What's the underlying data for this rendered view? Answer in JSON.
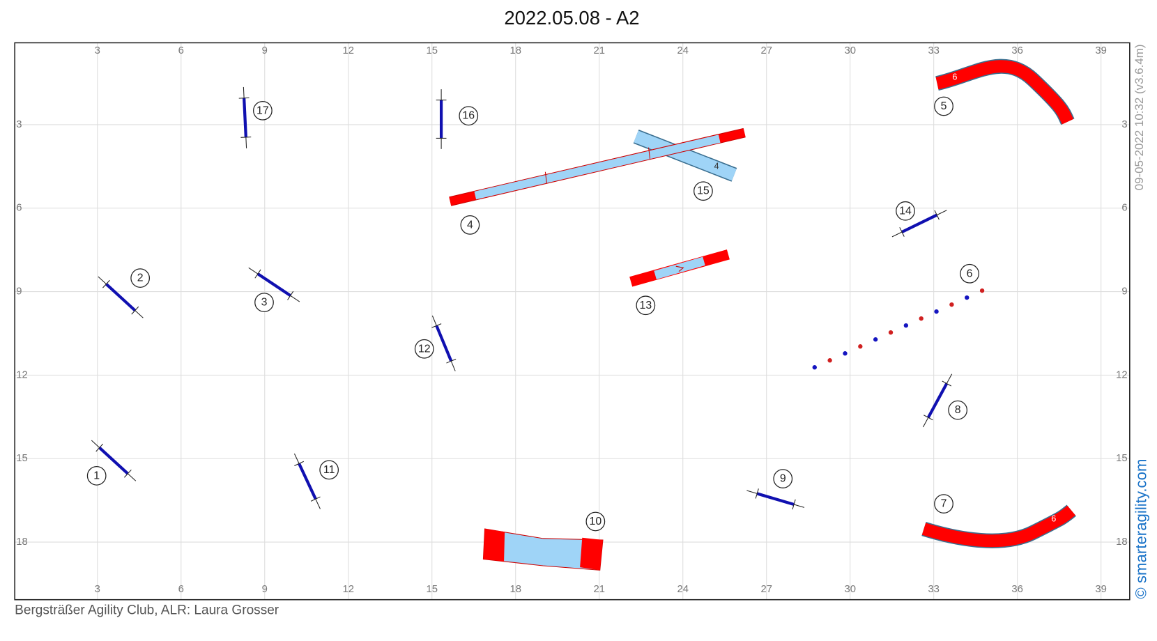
{
  "title": "2022.05.08 - A2",
  "footer": "Bergsträßer Agility Club, ALR: Laura Grosser",
  "timestamp": "09-05-2022 10:32  (v3.6.4m)",
  "brand": "© smarteragility.com",
  "axes": {
    "x_ticks": [
      3,
      6,
      9,
      12,
      15,
      18,
      21,
      24,
      27,
      30,
      33,
      36,
      39
    ],
    "y_ticks": [
      3,
      6,
      9,
      12,
      15,
      18
    ]
  },
  "obstacle_numbers": [
    1,
    2,
    3,
    4,
    5,
    6,
    7,
    8,
    9,
    10,
    11,
    12,
    13,
    14,
    15,
    16,
    17
  ],
  "tunnel_lengths": [
    6,
    4,
    6
  ]
}
